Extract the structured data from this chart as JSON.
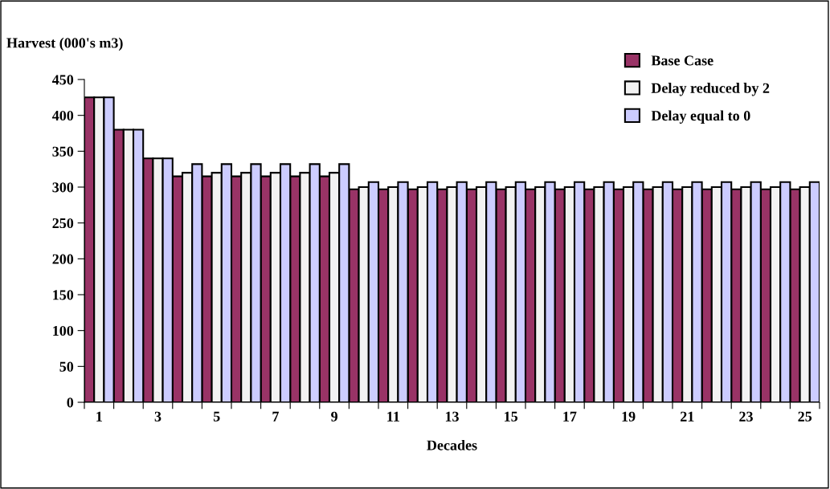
{
  "chart_data": {
    "type": "bar",
    "ylabel": "Harvest (000's m3)",
    "xlabel": "Decades",
    "categories": [
      "1",
      null,
      "3",
      null,
      "5",
      null,
      "7",
      null,
      "9",
      null,
      "11",
      null,
      "13",
      null,
      "15",
      null,
      "17",
      null,
      "19",
      null,
      "21",
      null,
      "23",
      null,
      "25"
    ],
    "series": [
      {
        "name": "Base Case",
        "color": "#993366",
        "values": [
          425,
          380,
          340,
          315,
          315,
          315,
          315,
          315,
          315,
          297,
          297,
          297,
          297,
          297,
          297,
          297,
          297,
          297,
          297,
          297,
          297,
          297,
          297,
          297,
          297
        ]
      },
      {
        "name": "Delay reduced by 2",
        "color": "#f2f2f2",
        "values": [
          425,
          380,
          340,
          320,
          320,
          320,
          320,
          320,
          320,
          300,
          300,
          300,
          300,
          300,
          300,
          300,
          300,
          300,
          300,
          300,
          300,
          300,
          300,
          300,
          300
        ]
      },
      {
        "name": "Delay equal to 0",
        "color": "#ccccff",
        "values": [
          425,
          380,
          340,
          332,
          332,
          332,
          332,
          332,
          332,
          307,
          307,
          307,
          307,
          307,
          307,
          307,
          307,
          307,
          307,
          307,
          307,
          307,
          307,
          307,
          307
        ]
      }
    ],
    "ylim": [
      0,
      450
    ],
    "yticks": [
      0,
      50,
      100,
      150,
      200,
      250,
      300,
      350,
      400,
      450
    ],
    "grid": false,
    "legend": "top right"
  }
}
